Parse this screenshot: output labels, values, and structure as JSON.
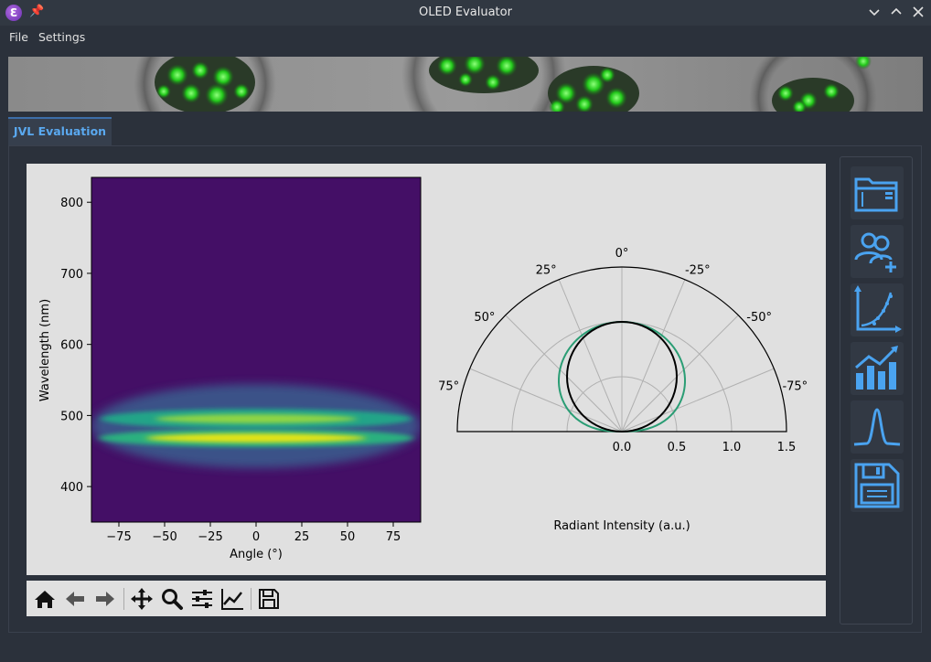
{
  "window": {
    "title": "OLED Evaluator"
  },
  "menu": {
    "file": "File",
    "settings": "Settings"
  },
  "tabs": [
    {
      "label": "JVL Evaluation"
    }
  ],
  "heatmap": {
    "xlabel": "Angle (°)",
    "ylabel": "Wavelength (nm)",
    "x_ticks": [
      "−75",
      "−50",
      "−25",
      "0",
      "25",
      "50",
      "75"
    ],
    "y_ticks": [
      "800",
      "700",
      "600",
      "500",
      "400"
    ],
    "x_range": [
      -90,
      90
    ],
    "y_range": [
      350,
      835
    ],
    "colormap": "viridis"
  },
  "polar": {
    "xlabel": "Radiant Intensity (a.u.)",
    "angle_labels": [
      "0°",
      "25°",
      "-25°",
      "50°",
      "-50°",
      "75°",
      "-75°"
    ],
    "radial_labels": [
      "0.0",
      "0.5",
      "1.0",
      "1.5"
    ],
    "radial_max": 1.5,
    "green_color": "#2a9d74",
    "black_color": "#000000"
  },
  "chart_data": [
    {
      "type": "heatmap",
      "xlabel": "Angle (°)",
      "ylabel": "Wavelength (nm)",
      "xlim": [
        -90,
        90
      ],
      "ylim": [
        350,
        835
      ],
      "bands": [
        {
          "center_nm": 467,
          "peak_intensity": 1.0
        },
        {
          "center_nm": 494,
          "peak_intensity": 0.8
        }
      ]
    },
    {
      "type": "line",
      "subtype": "polar",
      "xlabel": "Radiant Intensity (a.u.)",
      "rlim": [
        0,
        1.5
      ],
      "series": [
        {
          "shape": "lambertian",
          "max": 1.0,
          "color": "#000000"
        },
        {
          "shape": "measured",
          "max": 1.0,
          "color": "#2a9d74"
        }
      ]
    }
  ],
  "toolbar": {
    "icons": [
      "home-icon",
      "back-icon",
      "forward-icon",
      "pan-icon",
      "zoom-icon",
      "configure-subplots-icon",
      "edit-axis-icon",
      "save-figure-icon"
    ]
  },
  "sidebar": {
    "icons": [
      "open-folder-icon",
      "add-user-icon",
      "scatter-fit-icon",
      "bar-chart-trend-icon",
      "peak-icon",
      "save-icon"
    ],
    "accent": "#4aa3f0"
  }
}
